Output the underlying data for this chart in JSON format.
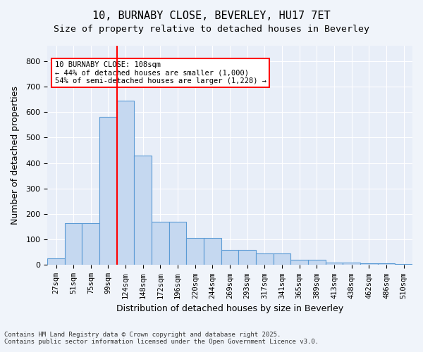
{
  "title_line1": "10, BURNABY CLOSE, BEVERLEY, HU17 7ET",
  "title_line2": "Size of property relative to detached houses in Beverley",
  "xlabel": "Distribution of detached houses by size in Beverley",
  "ylabel": "Number of detached properties",
  "categories": [
    "27sqm",
    "51sqm",
    "75sqm",
    "99sqm",
    "124sqm",
    "148sqm",
    "172sqm",
    "196sqm",
    "220sqm",
    "244sqm",
    "269sqm",
    "293sqm",
    "317sqm",
    "341sqm",
    "365sqm",
    "389sqm",
    "413sqm",
    "438sqm",
    "462sqm",
    "486sqm",
    "510sqm"
  ],
  "values": [
    25,
    165,
    165,
    580,
    645,
    430,
    170,
    170,
    105,
    105,
    60,
    60,
    45,
    45,
    20,
    20,
    10,
    10,
    7,
    7,
    4
  ],
  "bar_color": "#c5d8f0",
  "bar_edge_color": "#5b9bd5",
  "vline_x": 4,
  "vline_color": "red",
  "annotation_text": "10 BURNABY CLOSE: 108sqm\n← 44% of detached houses are smaller (1,000)\n54% of semi-detached houses are larger (1,228) →",
  "annotation_box_color": "white",
  "annotation_box_edge_color": "red",
  "ylim": [
    0,
    860
  ],
  "yticks": [
    0,
    100,
    200,
    300,
    400,
    500,
    600,
    700,
    800
  ],
  "footer_line1": "Contains HM Land Registry data © Crown copyright and database right 2025.",
  "footer_line2": "Contains public sector information licensed under the Open Government Licence v3.0.",
  "bg_color": "#f0f4fa",
  "plot_bg_color": "#e8eef8"
}
